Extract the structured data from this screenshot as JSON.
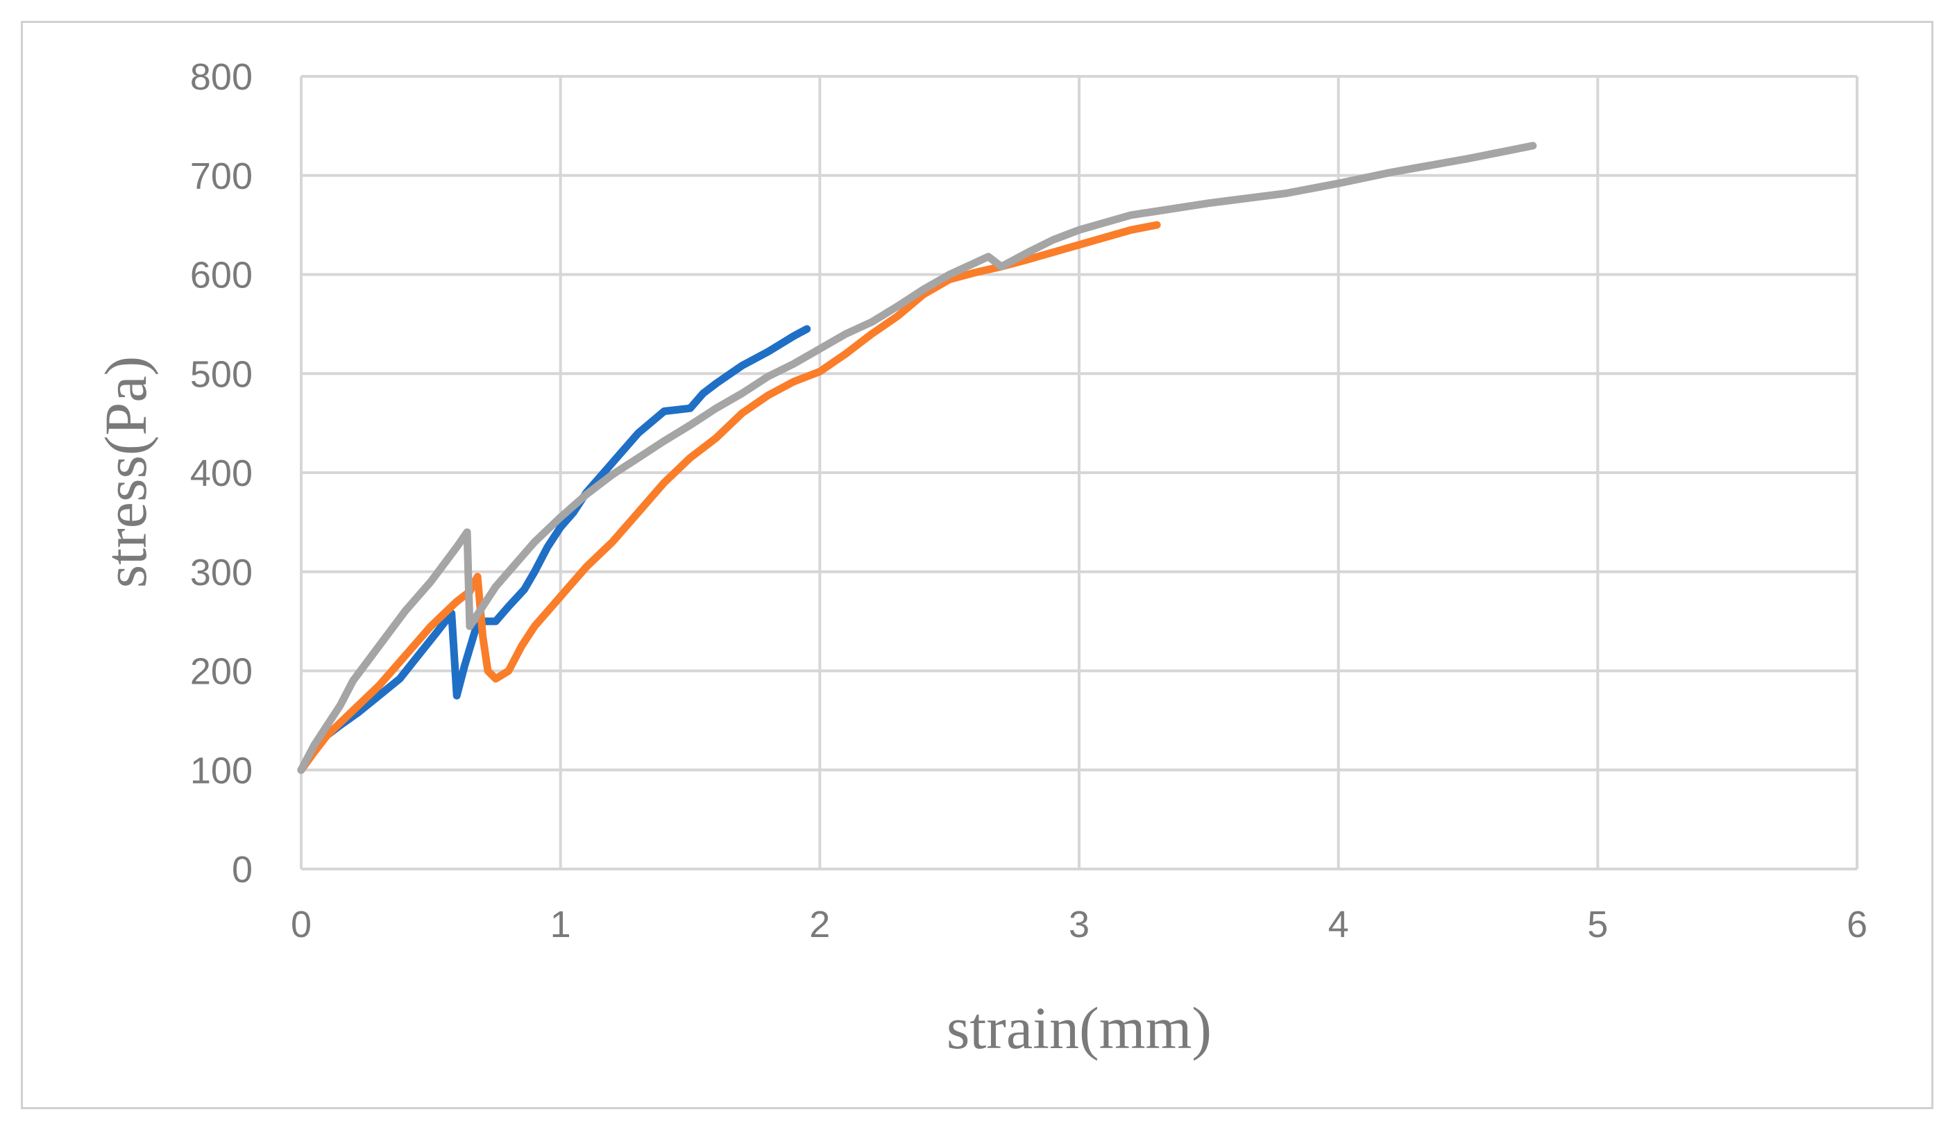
{
  "chart_data": {
    "type": "line",
    "title": "",
    "xlabel": "strain(mm)",
    "ylabel": "stress(Pa)",
    "xlim": [
      0,
      6
    ],
    "ylim": [
      0,
      800
    ],
    "xticks": [
      "0",
      "1",
      "2",
      "3",
      "4",
      "5",
      "6"
    ],
    "yticks": [
      "0",
      "100",
      "200",
      "300",
      "400",
      "500",
      "600",
      "700",
      "800"
    ],
    "grid": true,
    "legend": "none",
    "series": [
      {
        "color": "#1f6fc5",
        "points": [
          [
            0,
            100
          ],
          [
            0.05,
            120
          ],
          [
            0.1,
            135
          ],
          [
            0.15,
            145
          ],
          [
            0.22,
            158
          ],
          [
            0.3,
            175
          ],
          [
            0.38,
            192
          ],
          [
            0.45,
            215
          ],
          [
            0.52,
            238
          ],
          [
            0.58,
            258
          ],
          [
            0.6,
            175
          ],
          [
            0.63,
            205
          ],
          [
            0.67,
            240
          ],
          [
            0.7,
            250
          ],
          [
            0.75,
            250
          ],
          [
            0.8,
            265
          ],
          [
            0.86,
            282
          ],
          [
            0.9,
            300
          ],
          [
            0.95,
            325
          ],
          [
            1.0,
            345
          ],
          [
            1.05,
            360
          ],
          [
            1.1,
            380
          ],
          [
            1.2,
            410
          ],
          [
            1.3,
            440
          ],
          [
            1.4,
            462
          ],
          [
            1.5,
            465
          ],
          [
            1.55,
            480
          ],
          [
            1.6,
            490
          ],
          [
            1.7,
            508
          ],
          [
            1.8,
            522
          ],
          [
            1.85,
            530
          ],
          [
            1.9,
            538
          ],
          [
            1.95,
            545
          ]
        ]
      },
      {
        "color": "#fa7d2a",
        "points": [
          [
            0,
            100
          ],
          [
            0.05,
            118
          ],
          [
            0.1,
            135
          ],
          [
            0.2,
            160
          ],
          [
            0.3,
            185
          ],
          [
            0.4,
            215
          ],
          [
            0.5,
            245
          ],
          [
            0.6,
            270
          ],
          [
            0.65,
            280
          ],
          [
            0.68,
            295
          ],
          [
            0.7,
            235
          ],
          [
            0.72,
            200
          ],
          [
            0.75,
            192
          ],
          [
            0.8,
            200
          ],
          [
            0.85,
            225
          ],
          [
            0.9,
            245
          ],
          [
            1.0,
            275
          ],
          [
            1.1,
            305
          ],
          [
            1.2,
            330
          ],
          [
            1.3,
            360
          ],
          [
            1.4,
            390
          ],
          [
            1.5,
            415
          ],
          [
            1.6,
            435
          ],
          [
            1.7,
            460
          ],
          [
            1.8,
            478
          ],
          [
            1.9,
            492
          ],
          [
            2.0,
            502
          ],
          [
            2.1,
            520
          ],
          [
            2.2,
            540
          ],
          [
            2.3,
            558
          ],
          [
            2.4,
            580
          ],
          [
            2.5,
            595
          ],
          [
            2.6,
            602
          ],
          [
            2.7,
            608
          ],
          [
            2.8,
            615
          ],
          [
            3.0,
            630
          ],
          [
            3.2,
            645
          ],
          [
            3.3,
            650
          ]
        ]
      },
      {
        "color": "#a5a5a5",
        "points": [
          [
            0,
            100
          ],
          [
            0.05,
            125
          ],
          [
            0.1,
            145
          ],
          [
            0.15,
            165
          ],
          [
            0.2,
            190
          ],
          [
            0.3,
            225
          ],
          [
            0.4,
            260
          ],
          [
            0.5,
            290
          ],
          [
            0.6,
            325
          ],
          [
            0.64,
            340
          ],
          [
            0.65,
            245
          ],
          [
            0.7,
            265
          ],
          [
            0.75,
            285
          ],
          [
            0.8,
            300
          ],
          [
            0.9,
            330
          ],
          [
            1.0,
            355
          ],
          [
            1.1,
            378
          ],
          [
            1.2,
            398
          ],
          [
            1.3,
            415
          ],
          [
            1.4,
            432
          ],
          [
            1.5,
            448
          ],
          [
            1.6,
            465
          ],
          [
            1.7,
            480
          ],
          [
            1.8,
            497
          ],
          [
            1.9,
            510
          ],
          [
            2.0,
            525
          ],
          [
            2.1,
            540
          ],
          [
            2.2,
            552
          ],
          [
            2.3,
            568
          ],
          [
            2.4,
            585
          ],
          [
            2.5,
            600
          ],
          [
            2.6,
            612
          ],
          [
            2.65,
            618
          ],
          [
            2.7,
            608
          ],
          [
            2.8,
            622
          ],
          [
            2.9,
            635
          ],
          [
            3.0,
            645
          ],
          [
            3.2,
            660
          ],
          [
            3.5,
            672
          ],
          [
            3.8,
            682
          ],
          [
            4.0,
            692
          ],
          [
            4.2,
            703
          ],
          [
            4.5,
            717
          ],
          [
            4.75,
            730
          ]
        ]
      }
    ]
  }
}
